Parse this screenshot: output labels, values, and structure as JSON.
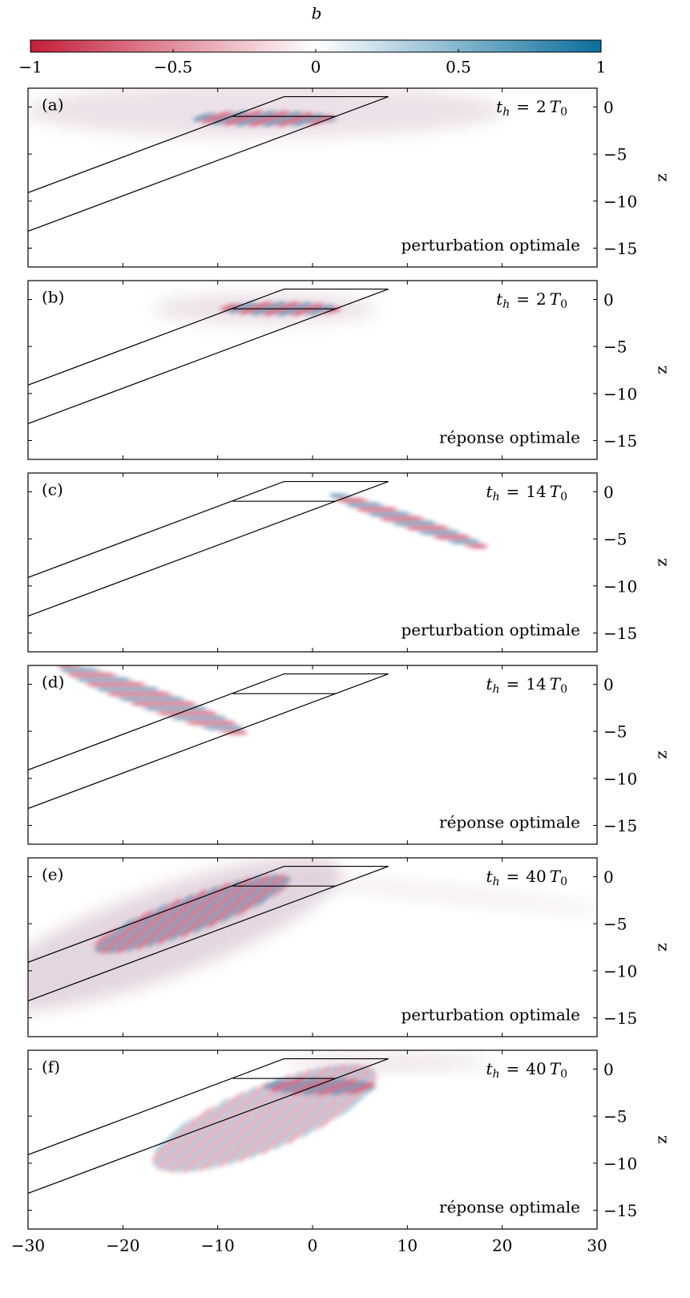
{
  "chart_data": {
    "type": "heatmap",
    "colorbar": {
      "label": "b",
      "lim": [
        -1,
        1
      ],
      "colors": [
        "#c41e3a",
        "#ffffff",
        "#0b6e9c"
      ],
      "ticks": [
        {
          "value": -1,
          "label": "−1"
        },
        {
          "value": -0.5,
          "label": "−0.5"
        },
        0,
        0.5,
        1
      ]
    },
    "xlim": [
      -30,
      30
    ],
    "xticks": [
      {
        "value": -30,
        "label": "−30"
      },
      {
        "value": -20,
        "label": "−20"
      },
      {
        "value": -10,
        "label": "−10"
      },
      0,
      10,
      20,
      30
    ],
    "ylim": [
      -17,
      2
    ],
    "yticks": [
      0,
      {
        "value": -5,
        "label": "−5"
      },
      {
        "value": -10,
        "label": "−10"
      },
      {
        "value": -15,
        "label": "−15"
      }
    ],
    "ylabel": "z",
    "outline": [
      [
        [
          -30,
          -9.1
        ],
        [
          -3,
          1.1
        ],
        [
          8,
          1.1
        ],
        [
          -30,
          -13.2
        ]
      ],
      [
        [
          -8.4,
          -1
        ],
        [
          2.5,
          -1
        ]
      ]
    ],
    "panels": [
      {
        "label": "(a)",
        "caption": "perturbation optimale",
        "time": {
          "var": "t",
          "sub": "h",
          "rel": "=",
          "n": 2,
          "unit": "T",
          "unit_sub": "0"
        }
      },
      {
        "label": "(b)",
        "caption": "réponse optimale",
        "time": {
          "var": "t",
          "sub": "h",
          "rel": "=",
          "n": 2,
          "unit": "T",
          "unit_sub": "0"
        }
      },
      {
        "label": "(c)",
        "caption": "perturbation optimale",
        "time": {
          "var": "t",
          "sub": "h",
          "rel": "=",
          "n": 14,
          "unit": "T",
          "unit_sub": "0"
        }
      },
      {
        "label": "(d)",
        "caption": "réponse optimale",
        "time": {
          "var": "t",
          "sub": "h",
          "rel": "=",
          "n": 14,
          "unit": "T",
          "unit_sub": "0"
        }
      },
      {
        "label": "(e)",
        "caption": "perturbation optimale",
        "time": {
          "var": "t",
          "sub": "h",
          "rel": "=",
          "n": 40,
          "unit": "T",
          "unit_sub": "0"
        }
      },
      {
        "label": "(f)",
        "caption": "réponse optimale",
        "time": {
          "var": "t",
          "sub": "h",
          "rel": "=",
          "n": 40,
          "unit": "T",
          "unit_sub": "0"
        }
      }
    ]
  }
}
